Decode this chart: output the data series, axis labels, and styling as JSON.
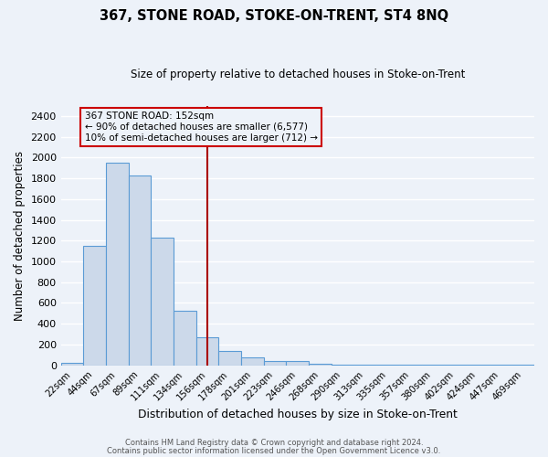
{
  "title": "367, STONE ROAD, STOKE-ON-TRENT, ST4 8NQ",
  "subtitle": "Size of property relative to detached houses in Stoke-on-Trent",
  "xlabel": "Distribution of detached houses by size in Stoke-on-Trent",
  "ylabel": "Number of detached properties",
  "bar_labels": [
    "22sqm",
    "44sqm",
    "67sqm",
    "89sqm",
    "111sqm",
    "134sqm",
    "156sqm",
    "178sqm",
    "201sqm",
    "223sqm",
    "246sqm",
    "268sqm",
    "290sqm",
    "313sqm",
    "335sqm",
    "357sqm",
    "380sqm",
    "402sqm",
    "424sqm",
    "447sqm",
    "469sqm"
  ],
  "bar_values": [
    25,
    1150,
    1950,
    1830,
    1225,
    525,
    265,
    140,
    75,
    40,
    40,
    10,
    8,
    5,
    3,
    2,
    2,
    1,
    1,
    1,
    1
  ],
  "bar_color": "#ccd9ea",
  "bar_edge_color": "#5b9bd5",
  "vline_x_index": 6,
  "vline_color": "#aa0000",
  "annotation_text_line1": "367 STONE ROAD: 152sqm",
  "annotation_text_line2": "← 90% of detached houses are smaller (6,577)",
  "annotation_text_line3": "10% of semi-detached houses are larger (712) →",
  "ylim": [
    0,
    2500
  ],
  "yticks": [
    0,
    200,
    400,
    600,
    800,
    1000,
    1200,
    1400,
    1600,
    1800,
    2000,
    2200,
    2400
  ],
  "bg_color": "#edf2f9",
  "grid_color": "#ffffff",
  "footer_line1": "Contains HM Land Registry data © Crown copyright and database right 2024.",
  "footer_line2": "Contains public sector information licensed under the Open Government Licence v3.0."
}
